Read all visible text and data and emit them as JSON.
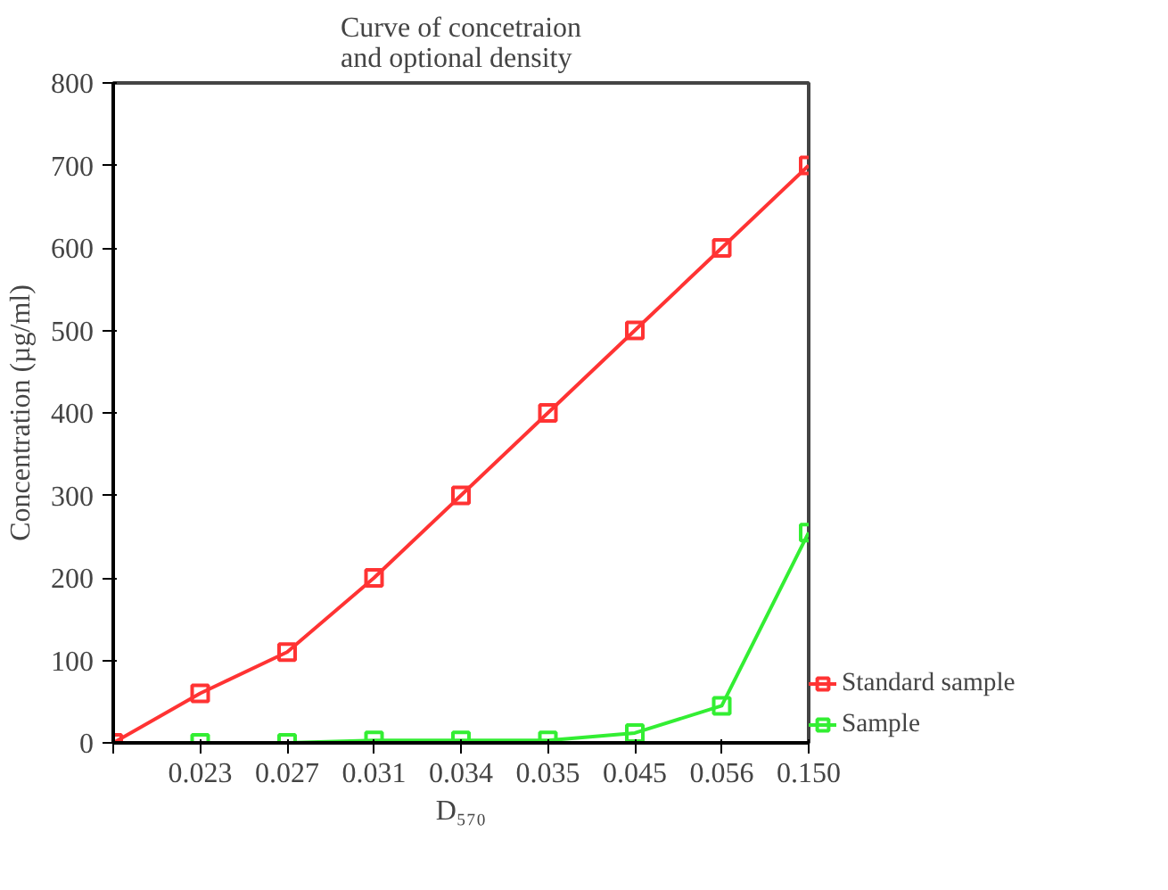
{
  "chart_data": {
    "type": "line",
    "title": "Curve of concetraion\nand optional density",
    "xlabel": "D₅₇₀",
    "ylabel": "Concentration (µg/ml)",
    "categories": [
      null,
      "0.023",
      "0.027",
      "0.031",
      "0.034",
      "0.035",
      "0.045",
      "0.056",
      "0.150"
    ],
    "series": [
      {
        "name": "Standard sample",
        "color": "#ff3333",
        "values": [
          0,
          60,
          110,
          200,
          300,
          400,
          500,
          600,
          700
        ]
      },
      {
        "name": "Sample",
        "color": "#33ee33",
        "values": [
          null,
          0,
          0,
          3,
          3,
          3,
          12,
          45,
          255
        ]
      }
    ],
    "ylim": [
      0,
      800
    ],
    "yticks": [
      0,
      100,
      200,
      300,
      400,
      500,
      600,
      700,
      800
    ],
    "marker": "square",
    "grid": false,
    "legend": "bottom right"
  }
}
